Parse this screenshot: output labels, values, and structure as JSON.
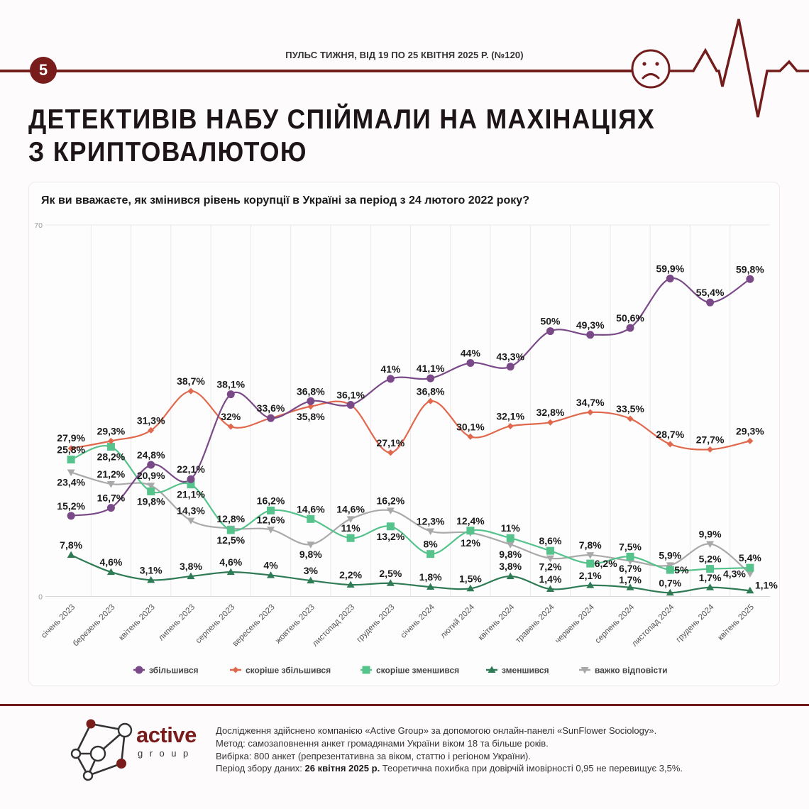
{
  "header": {
    "badge_number": "5",
    "subtitle": "ПУЛЬС ТИЖНЯ, ВІД 19 ПО 25 КВІТНЯ 2025 Р. (№120)",
    "mood_icon": "sad-face-icon",
    "title_line1": "ДЕТЕКТИВІВ НАБУ СПІЙМАЛИ НА МАХІНАЦІЯХ",
    "title_line2": "З КРИПТОВАЛЮТОЮ"
  },
  "colors": {
    "brand": "#781c1c",
    "text": "#1a1a1a",
    "grid": "#e8e6e8"
  },
  "chart_data": {
    "type": "line",
    "title": "Як ви вважаєте, як змінився рівень корупції в Україні за період з 24 лютого 2022 року?",
    "xlabel": "",
    "ylabel": "",
    "ylim": [
      0,
      70
    ],
    "y_ticks": [
      0,
      70
    ],
    "grid": true,
    "legend_position": "bottom",
    "categories": [
      "січень 2023",
      "березень 2023",
      "квітень 2023",
      "липень 2023",
      "серпень 2023",
      "вересень 2023",
      "жовтень 2023",
      "листопад 2023",
      "грудень 2023",
      "січень 2024",
      "лютий 2024",
      "квітень 2024",
      "травень 2024",
      "червень 2024",
      "серпень 2024",
      "листопад 2024",
      "грудень 2024",
      "квітень 2025"
    ],
    "series": [
      {
        "name": "збільшився",
        "color": "#7a4a88",
        "marker": "circle",
        "values": [
          15.2,
          16.7,
          24.8,
          22.1,
          38.1,
          33.6,
          36.8,
          36.1,
          41,
          41.1,
          44,
          43.3,
          50,
          49.3,
          50.6,
          59.9,
          55.4,
          59.8
        ],
        "labels": [
          "15,2%",
          "16,7%",
          "24,8%",
          "22,1%",
          "38,1%",
          "33,6%",
          "36,8%",
          "36,1%",
          "41%",
          "41,1%",
          "44%",
          "43,3%",
          "50%",
          "49,3%",
          "50,6%",
          "59,9%",
          "55,4%",
          "59,8%"
        ]
      },
      {
        "name": "скоріше збільшився",
        "color": "#e0684d",
        "marker": "diamond",
        "values": [
          27.9,
          29.3,
          31.3,
          38.7,
          32,
          33.6,
          35.8,
          36.1,
          27.1,
          36.8,
          30.1,
          32.1,
          32.8,
          34.7,
          33.5,
          28.7,
          27.7,
          29.3
        ],
        "labels": [
          "27,9%",
          "29,3%",
          "31,3%",
          "38,7%",
          "32%",
          null,
          "35,8%",
          null,
          "27,1%",
          "36,8%",
          "30,1%",
          "32,1%",
          "32,8%",
          "34,7%",
          "33,5%",
          "28,7%",
          "27,7%",
          "29,3%"
        ]
      },
      {
        "name": "скоріше зменшився",
        "color": "#55c38b",
        "marker": "square",
        "values": [
          25.8,
          28.2,
          19.8,
          21.1,
          12.5,
          16.2,
          14.6,
          11,
          13.2,
          8,
          12.4,
          11,
          8.6,
          6.2,
          7.5,
          5,
          5.2,
          5.4
        ],
        "labels": [
          "25,8%",
          "28,2%",
          "19,8%",
          "21,1%",
          "12,5%",
          "16,2%",
          "14,6%",
          "11%",
          "13,2%",
          "8%",
          "12,4%",
          "11%",
          "8,6%",
          "6,2%",
          "7,5%",
          "5%",
          "5,2%",
          "5,4%"
        ]
      },
      {
        "name": "зменшився",
        "color": "#2e7b55",
        "marker": "triangle-up",
        "values": [
          7.8,
          4.6,
          3.1,
          3.8,
          4.6,
          4,
          3,
          2.2,
          2.5,
          1.8,
          1.5,
          3.8,
          1.4,
          2.1,
          1.7,
          0.7,
          1.7,
          1.1
        ],
        "labels": [
          "7,8%",
          "4,6%",
          "3,1%",
          "3,8%",
          "4,6%",
          "4%",
          "3%",
          "2,2%",
          "2,5%",
          "1,8%",
          "1,5%",
          "3,8%",
          "1,4%",
          "2,1%",
          "1,7%",
          "0,7%",
          "1,7%",
          "1,1%"
        ]
      },
      {
        "name": "важко відповісти",
        "color": "#a9a9a9",
        "marker": "triangle-down",
        "values": [
          23.4,
          21.2,
          20.9,
          14.3,
          12.8,
          12.6,
          9.8,
          14.6,
          16.2,
          12.3,
          12,
          9.8,
          7.2,
          7.8,
          6.7,
          5.9,
          9.9,
          4.3
        ],
        "labels": [
          "23,4%",
          "21,2%",
          "20,9%",
          "14,3%",
          "12,8%",
          "12,6%",
          "9,8%",
          "14,6%",
          "16,2%",
          "12,3%",
          "12%",
          "9,8%",
          "7,2%",
          "7,8%",
          "6,7%",
          "5,9%",
          "9,9%",
          "4,3%"
        ]
      }
    ]
  },
  "footer": {
    "logo_word": "active",
    "logo_subword": "group",
    "line1": "Дослідження здійснено компанією «Active Group» за допомогою онлайн-панелі «SunFlower Sociology».",
    "line2": "Метод: самозаповнення анкет громадянами України віком 18 та більше років.",
    "line3": "Вибірка: 800 анкет (репрезентативна за віком, статтю і регіоном України).",
    "line4_prefix": "Період збору даних: ",
    "line4_date": "26 квітня 2025 р.",
    "line4_suffix": " Теоретична похибка при довірчій імовірності 0,95 не перевищує 3,5%."
  }
}
